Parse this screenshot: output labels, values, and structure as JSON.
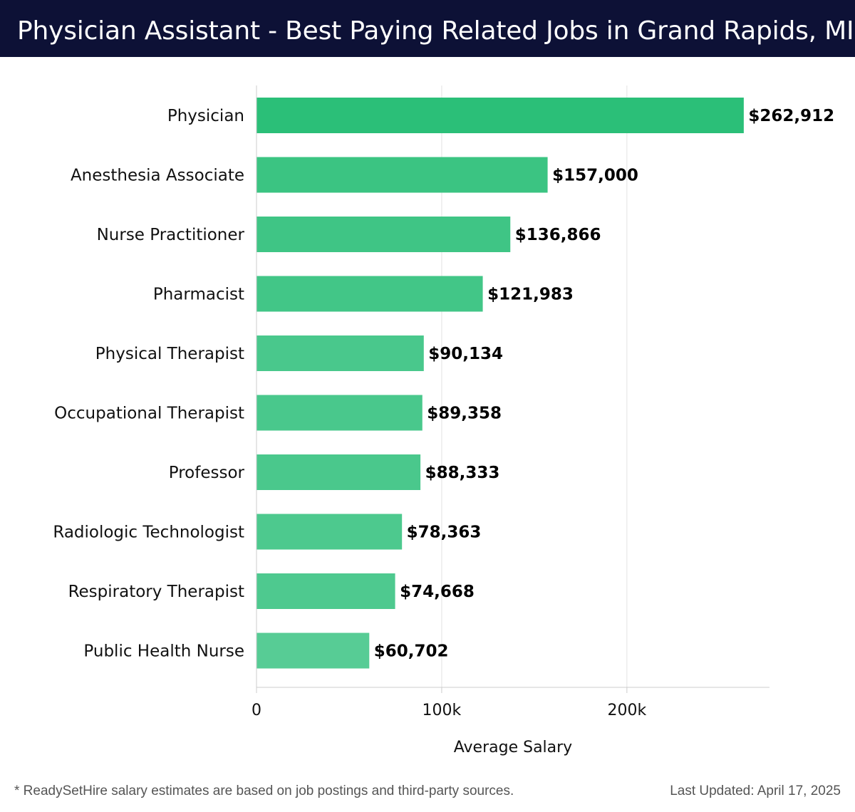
{
  "header": {
    "title": "Physician Assistant - Best Paying Related Jobs in Grand Rapids, MI"
  },
  "chart_data": {
    "type": "bar",
    "orientation": "horizontal",
    "categories": [
      "Physician",
      "Anesthesia Associate",
      "Nurse Practitioner",
      "Pharmacist",
      "Physical Therapist",
      "Occupational Therapist",
      "Professor",
      "Radiologic Technologist",
      "Respiratory Therapist",
      "Public Health Nurse"
    ],
    "values": [
      262912,
      157000,
      136866,
      121983,
      90134,
      89358,
      88333,
      78363,
      74668,
      60702
    ],
    "value_labels": [
      "$262,912",
      "$157,000",
      "$136,866",
      "$121,983",
      "$90,134",
      "$89,358",
      "$88,333",
      "$78,363",
      "$74,668",
      "$60,702"
    ],
    "xlabel": "Average Salary",
    "ylabel": "",
    "xlim": [
      0,
      277000
    ],
    "xticks": [
      0,
      100000,
      200000
    ],
    "xtick_labels": [
      "0",
      "100k",
      "200k"
    ],
    "grid": "vertical",
    "colors": {
      "top_bar": "#2bbf78",
      "bar_light": "#57cc95",
      "bar_dark": "#2bbf78",
      "grid": "#e3e3e3",
      "axis": "#cccccc"
    }
  },
  "footer": {
    "note": "* ReadySetHire salary estimates are based on job postings and third-party sources.",
    "updated": "Last Updated: April 17, 2025"
  }
}
